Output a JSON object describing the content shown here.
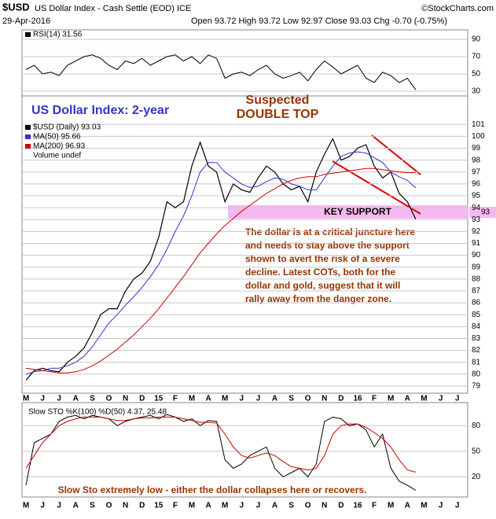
{
  "header": {
    "symbol": "$USD",
    "name": "US Dollar Index - Cash Settle (EOD) ICE",
    "copyright": "©StockCharts.com",
    "date": "29-Apr-2016",
    "quote": "Open 93.72  High 93.72  Low 92.97  Close 93.03  Chg -0.70 (-0.75%)"
  },
  "chart_data": [
    {
      "type": "line",
      "ylim": [
        24.5,
        100.9
      ],
      "yticks": [
        30,
        50,
        70,
        90
      ],
      "grid": true,
      "series": [
        {
          "name": "RSI(14) 31.56",
          "color": "#000000",
          "values": [
            55,
            60,
            50,
            52,
            48,
            60,
            65,
            70,
            72,
            68,
            60,
            55,
            65,
            62,
            68,
            60,
            65,
            70,
            72,
            65,
            70,
            62,
            72,
            68,
            45,
            50,
            52,
            48,
            55,
            60,
            50,
            45,
            48,
            52,
            42,
            55,
            65,
            58,
            50,
            55,
            60,
            45,
            40,
            52,
            48,
            40,
            45,
            31.56,
            null,
            null,
            null,
            null,
            null,
            null
          ]
        }
      ]
    },
    {
      "type": "line",
      "ylim": [
        78.4,
        103.4
      ],
      "yticks": [
        79,
        80,
        81,
        82,
        83,
        84,
        85,
        86,
        87,
        88,
        89,
        90,
        91,
        92,
        93,
        94,
        95,
        96,
        97,
        98,
        99,
        100,
        101
      ],
      "grid": true,
      "categories": [
        "M",
        null,
        "J",
        null,
        "J",
        null,
        "A",
        null,
        "S",
        null,
        "O",
        null,
        "N",
        null,
        "D",
        null,
        "15",
        null,
        "F",
        null,
        "M",
        null,
        "A",
        null,
        "M",
        null,
        "J",
        null,
        "J",
        null,
        "A",
        null,
        "S",
        null,
        "O",
        null,
        "N",
        null,
        "D",
        null,
        "16",
        null,
        "F",
        null,
        "M",
        null,
        "A",
        null,
        "M",
        null,
        "J",
        null,
        "J",
        null
      ],
      "series": [
        {
          "name": "$USD (Daily) 93.03",
          "color": "#000000",
          "values": [
            79.5,
            80.3,
            80.5,
            80.3,
            80.2,
            81,
            81.5,
            82.2,
            83.5,
            85,
            85.5,
            85.5,
            87,
            88,
            88.5,
            89.5,
            91.5,
            94.5,
            94,
            94.5,
            97.5,
            99.5,
            97.5,
            97,
            94.5,
            96,
            95.5,
            95.3,
            96.5,
            97.5,
            97,
            96,
            95.5,
            95.8,
            94.5,
            97,
            98.5,
            99.8,
            98,
            98.3,
            99,
            99.3,
            97.5,
            96.5,
            97,
            95.2,
            94.5,
            93.03,
            null,
            null,
            null,
            null,
            null,
            null
          ]
        },
        {
          "name": "MA(50) 95.66",
          "color": "#3333cc",
          "values": [
            80,
            80.2,
            80.3,
            80.5,
            80.5,
            80.7,
            81,
            81.5,
            82.3,
            83.3,
            84.3,
            85,
            85.8,
            86.5,
            87.3,
            88.2,
            89.2,
            90.5,
            92,
            93.3,
            95,
            97,
            97.8,
            97.8,
            97,
            96.5,
            96,
            95.7,
            95.8,
            96.2,
            96.5,
            96.4,
            96,
            95.8,
            95.5,
            95.5,
            96.5,
            97.5,
            98.3,
            98.6,
            98.7,
            98.6,
            98.2,
            97.8,
            97,
            96.6,
            96.3,
            95.66,
            null,
            null,
            null,
            null,
            null,
            null
          ]
        },
        {
          "name": "MA(200) 96.93",
          "color": "#cc0000",
          "values": [
            80.5,
            80.4,
            80.3,
            80.2,
            80.1,
            80.1,
            80.2,
            80.4,
            80.7,
            81.1,
            81.6,
            82.1,
            82.7,
            83.3,
            84,
            84.7,
            85.5,
            86.4,
            87.3,
            88.2,
            89.2,
            90.2,
            91,
            91.8,
            92.5,
            93.1,
            93.7,
            94.2,
            94.7,
            95.2,
            95.6,
            96,
            96.3,
            96.5,
            96.6,
            96.6,
            96.8,
            96.9,
            97,
            97.1,
            97.2,
            97.3,
            97.3,
            97.2,
            97.1,
            97,
            96.95,
            96.93,
            null,
            null,
            null,
            null,
            null,
            null
          ]
        }
      ],
      "volume_legend": "Volume undef",
      "price_tag": "93",
      "annotations": [
        "US Dollar Index: 2-year",
        "Suspected",
        "DOUBLE TOP",
        "KEY SUPPORT"
      ],
      "note_lines": [
        "The dollar is at a critical juncture here",
        "and needs to stay above the support",
        "shown to avert the risk of a severe",
        "decline. Latest COTs, both for the",
        "dollar and gold, suggest that it will",
        "rally away from the danger zone."
      ]
    },
    {
      "type": "line",
      "title": "Slow STO %K(100) %D(50) 4.37, 25.48",
      "ylim": [
        -3.6,
        107
      ],
      "yticks": [
        20,
        50,
        80
      ],
      "grid": true,
      "series": [
        {
          "color": "#000000",
          "values": [
            10,
            60,
            65,
            70,
            85,
            90,
            92,
            88,
            92,
            90,
            88,
            80,
            85,
            88,
            90,
            92,
            88,
            93,
            90,
            85,
            88,
            80,
            86,
            85,
            40,
            30,
            35,
            45,
            50,
            55,
            30,
            20,
            25,
            30,
            20,
            35,
            85,
            90,
            88,
            80,
            82,
            75,
            55,
            70,
            30,
            15,
            10,
            4.37,
            null,
            null,
            null,
            null,
            null,
            null
          ]
        },
        {
          "color": "#cc0000",
          "values": [
            30,
            45,
            60,
            70,
            80,
            85,
            88,
            90,
            90,
            90,
            88,
            86,
            86,
            88,
            89,
            89,
            90,
            90,
            90,
            88,
            86,
            84,
            84,
            83,
            70,
            55,
            45,
            42,
            45,
            48,
            45,
            38,
            32,
            30,
            28,
            30,
            45,
            70,
            80,
            82,
            82,
            78,
            72,
            65,
            55,
            40,
            28,
            25.48,
            null,
            null,
            null,
            null,
            null,
            null
          ]
        }
      ],
      "annotation": "Slow Sto extremely low - either the dollar collapses here or recovers."
    }
  ]
}
